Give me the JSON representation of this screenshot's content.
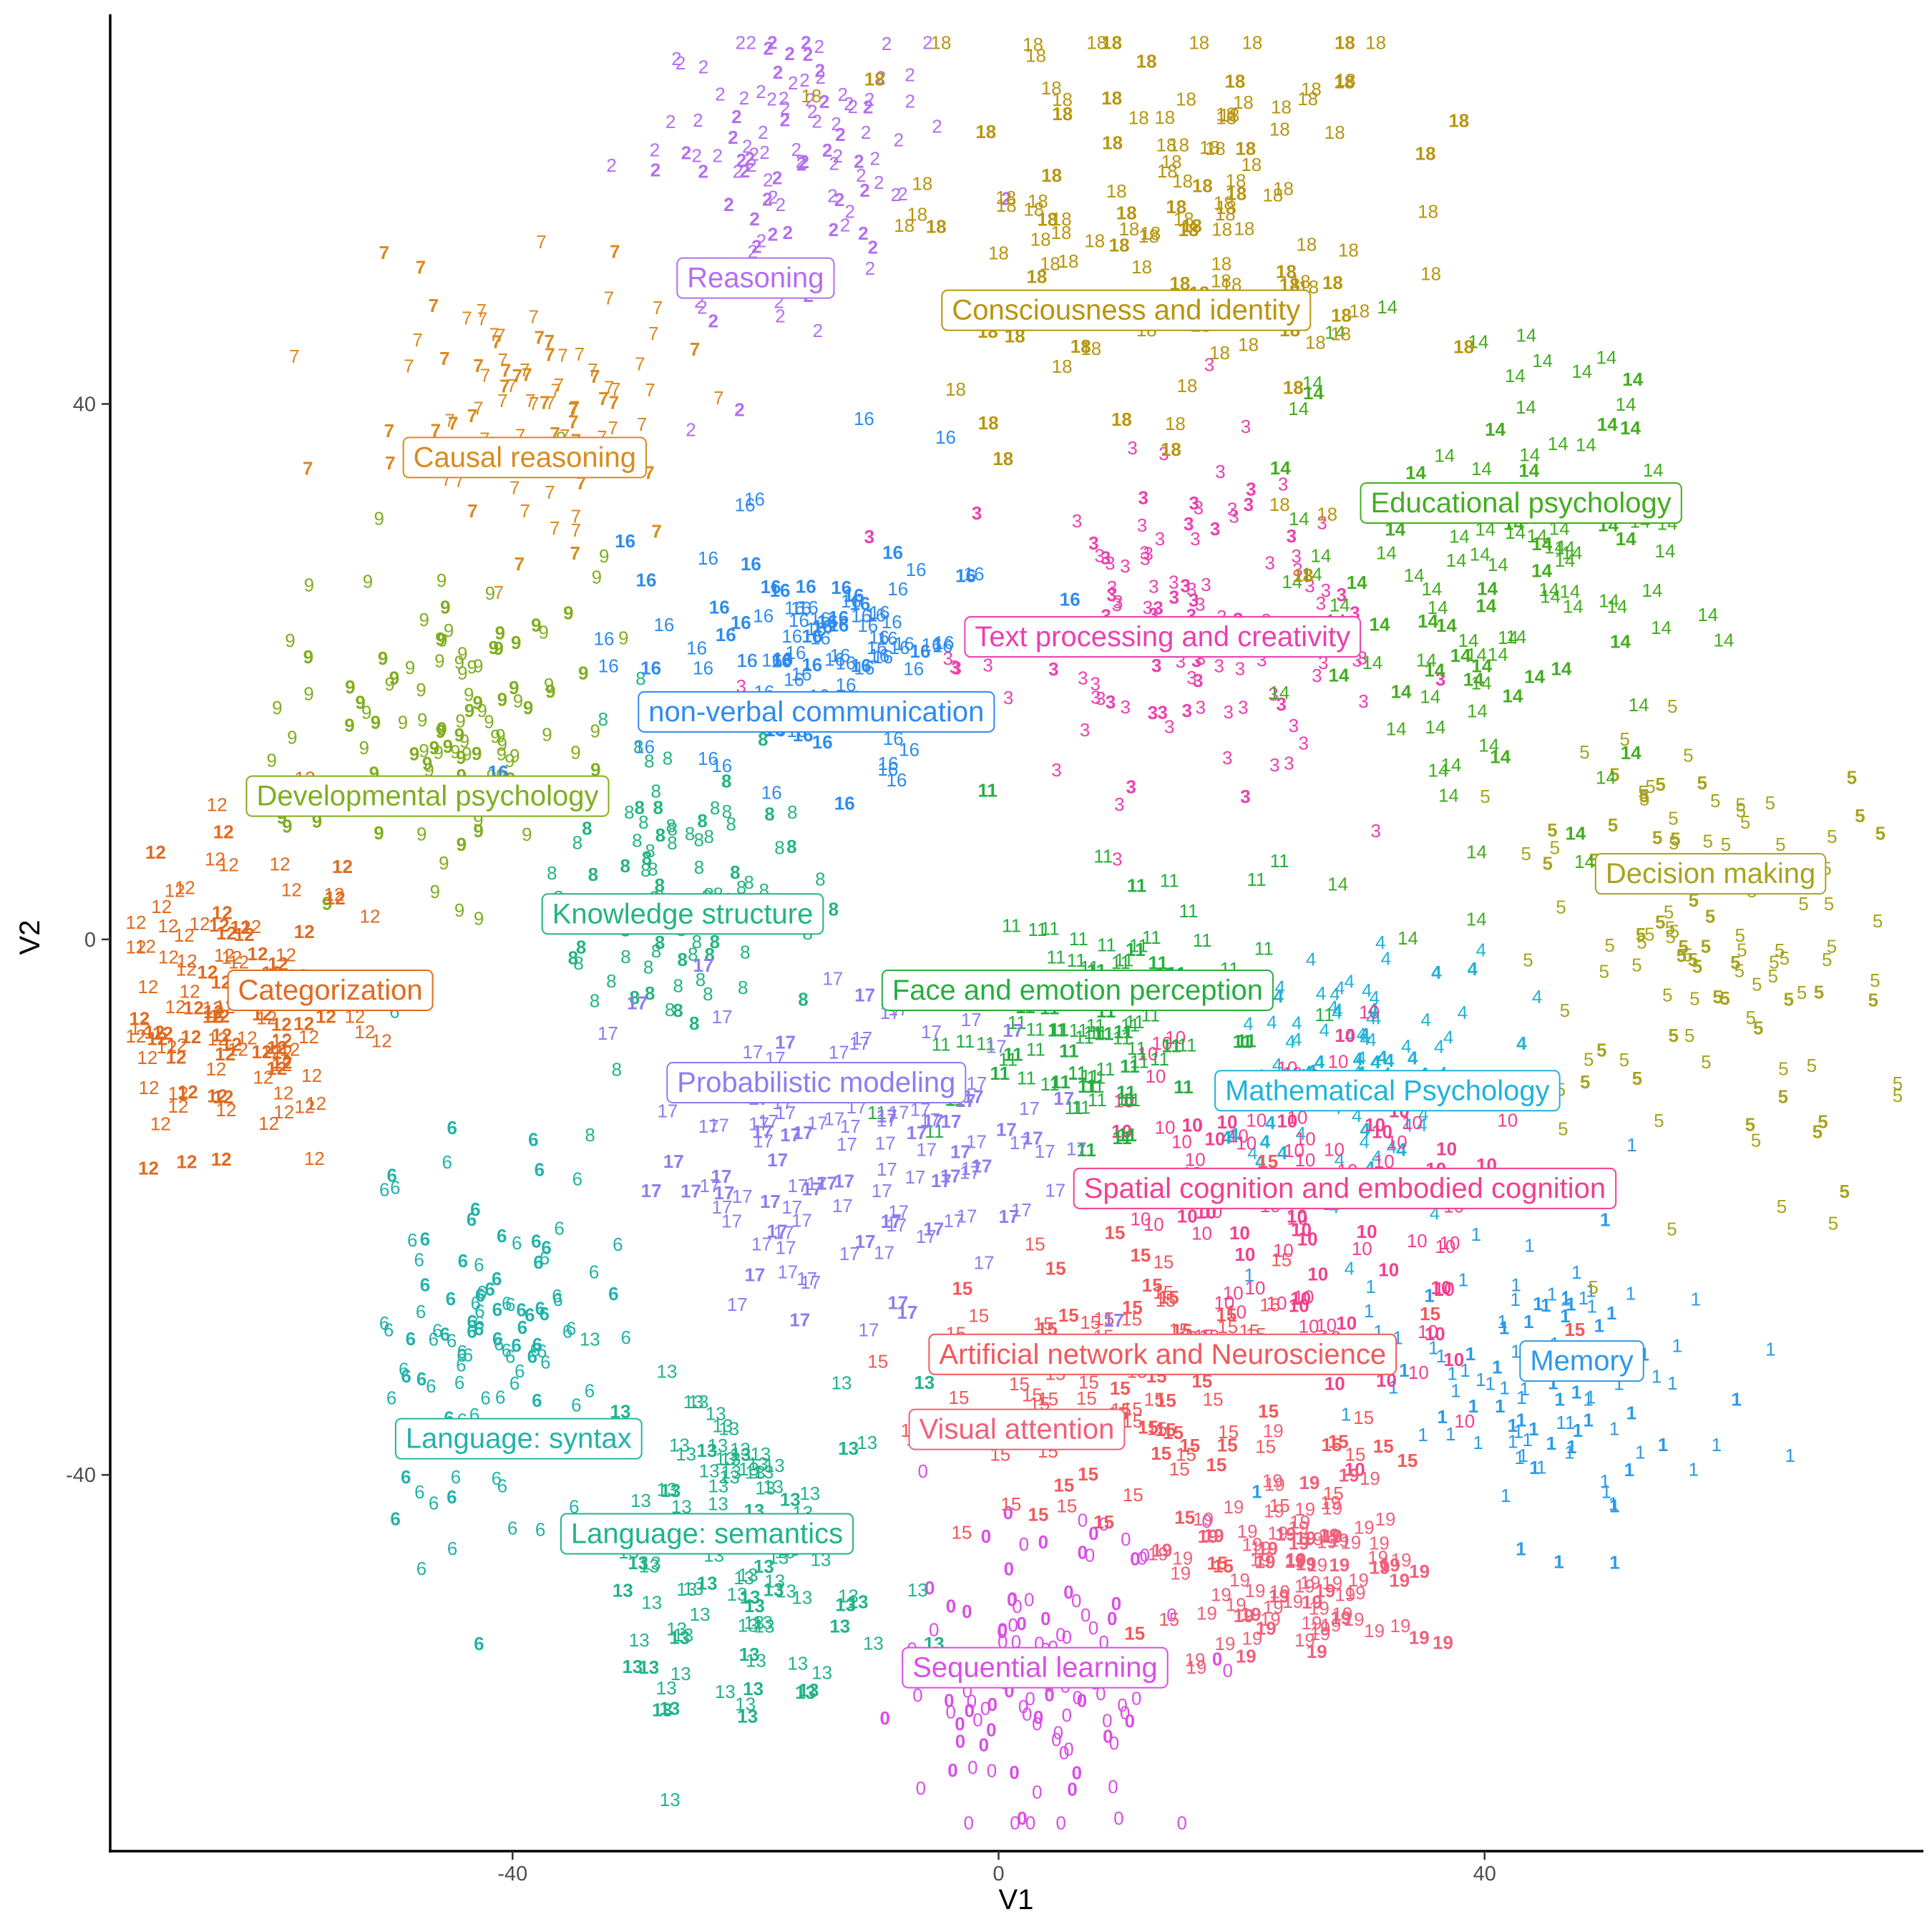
{
  "chart_data": {
    "type": "scatter",
    "xlabel": "V1",
    "ylabel": "V2",
    "xlim": [
      -73,
      76
    ],
    "ylim": [
      -68,
      69
    ],
    "x_ticks": [
      -40,
      0,
      40
    ],
    "y_ticks": [
      -40,
      0,
      40
    ],
    "x_tick_labels": [
      "-40",
      "0",
      "40"
    ],
    "y_tick_labels": [
      "-40",
      "0",
      "40"
    ],
    "grid": false,
    "legend": "none",
    "point_glyph": "topic number",
    "clusters": [
      {
        "id": "0",
        "label": "Sequential learning",
        "color": "#DB4DE8",
        "cx": 3,
        "cy": -55,
        "label_x": 3,
        "label_y": -54.4,
        "sx": 6,
        "sy": 6,
        "n": 110
      },
      {
        "id": "1",
        "label": "Memory",
        "color": "#2B9AE8",
        "cx": 45,
        "cy": -32,
        "label_x": 48,
        "label_y": -31.5,
        "sx": 7,
        "sy": 6,
        "n": 110
      },
      {
        "id": "2",
        "label": "Reasoning",
        "color": "#B46EF2",
        "cx": -19,
        "cy": 58,
        "label_x": -20,
        "label_y": 49.4,
        "sx": 6,
        "sy": 7,
        "n": 110
      },
      {
        "id": "3",
        "label": "Text processing and creativity",
        "color": "#EB40B0",
        "cx": 15,
        "cy": 24,
        "label_x": 13.5,
        "label_y": 22.6,
        "sx": 9,
        "sy": 6,
        "n": 120
      },
      {
        "id": "4",
        "label": "Mathematical Psychology",
        "color": "#1FB3D8",
        "cx": 29,
        "cy": -10,
        "label_x": 32,
        "label_y": -11.3,
        "sx": 6,
        "sy": 5,
        "n": 100
      },
      {
        "id": "5",
        "label": "Decision making",
        "color": "#A7A41E",
        "cx": 58,
        "cy": 1,
        "label_x": 58.6,
        "label_y": 4.9,
        "sx": 8,
        "sy": 8,
        "n": 120
      },
      {
        "id": "6",
        "label": "Language: syntax",
        "color": "#22B3AA",
        "cx": -42,
        "cy": -30,
        "label_x": -39.5,
        "label_y": -37.3,
        "sx": 5,
        "sy": 7,
        "n": 110
      },
      {
        "id": "7",
        "label": "Causal reasoning",
        "color": "#D98A1E",
        "cx": -38,
        "cy": 39,
        "label_x": -39,
        "label_y": 36.0,
        "sx": 6,
        "sy": 5,
        "n": 100
      },
      {
        "id": "8",
        "label": "Knowledge structure",
        "color": "#23B57E",
        "cx": -26,
        "cy": 3,
        "label_x": -26,
        "label_y": 1.9,
        "sx": 6,
        "sy": 6,
        "n": 100
      },
      {
        "id": "9",
        "label": "Developmental psychology",
        "color": "#7FAE1E",
        "cx": -44,
        "cy": 17,
        "label_x": -47,
        "label_y": 10.7,
        "sx": 6,
        "sy": 6,
        "n": 110
      },
      {
        "id": "10",
        "label": "Spatial cognition and embodied cognition",
        "color": "#F23F8F",
        "cx": 25,
        "cy": -21,
        "label_x": 28.5,
        "label_y": -18.6,
        "sx": 8,
        "sy": 7,
        "n": 110
      },
      {
        "id": "11",
        "label": "Face and emotion perception",
        "color": "#27AE3E",
        "cx": 8,
        "cy": -6,
        "label_x": 6.5,
        "label_y": -3.8,
        "sx": 6,
        "sy": 6,
        "n": 100
      },
      {
        "id": "12",
        "label": "Categorization",
        "color": "#E06A1F",
        "cx": -62,
        "cy": -5,
        "label_x": -55,
        "label_y": -3.8,
        "sx": 5,
        "sy": 6,
        "n": 110
      },
      {
        "id": "13",
        "label": "Language: semantics",
        "color": "#22B38A",
        "cx": -21,
        "cy": -47,
        "label_x": -24,
        "label_y": -44.4,
        "sx": 6,
        "sy": 8,
        "n": 110
      },
      {
        "id": "14",
        "label": "Educational psychology",
        "color": "#43AD1F",
        "cx": 40,
        "cy": 28,
        "label_x": 43,
        "label_y": 32.6,
        "sx": 8,
        "sy": 10,
        "n": 120
      },
      {
        "id": "15",
        "label": "Artificial network and Neuroscience",
        "color": "#F2585A",
        "cx": 13,
        "cy": -34,
        "label_x": 13.5,
        "label_y": -31.0,
        "sx": 9,
        "sy": 6,
        "n": 110
      },
      {
        "id": "16",
        "label": "non-verbal communication",
        "color": "#2E8BF0",
        "cx": -14,
        "cy": 21,
        "label_x": -15,
        "label_y": 17.0,
        "sx": 8,
        "sy": 5,
        "n": 110
      },
      {
        "id": "17",
        "label": "Probabilistic modeling",
        "color": "#8E7CF2",
        "cx": -12,
        "cy": -16,
        "label_x": -15,
        "label_y": -10.7,
        "sx": 9,
        "sy": 6,
        "n": 120
      },
      {
        "id": "18",
        "label": "Consciousness and identity",
        "color": "#B8950F",
        "cx": 14,
        "cy": 55,
        "label_x": 10.5,
        "label_y": 47.0,
        "sx": 10,
        "sy": 9,
        "n": 130
      },
      {
        "id": "19",
        "label": "Visual attention",
        "color": "#F0607A",
        "cx": 25,
        "cy": -47,
        "label_x": 1.5,
        "label_y": -36.6,
        "sx": 5,
        "sy": 4,
        "n": 90
      }
    ]
  }
}
